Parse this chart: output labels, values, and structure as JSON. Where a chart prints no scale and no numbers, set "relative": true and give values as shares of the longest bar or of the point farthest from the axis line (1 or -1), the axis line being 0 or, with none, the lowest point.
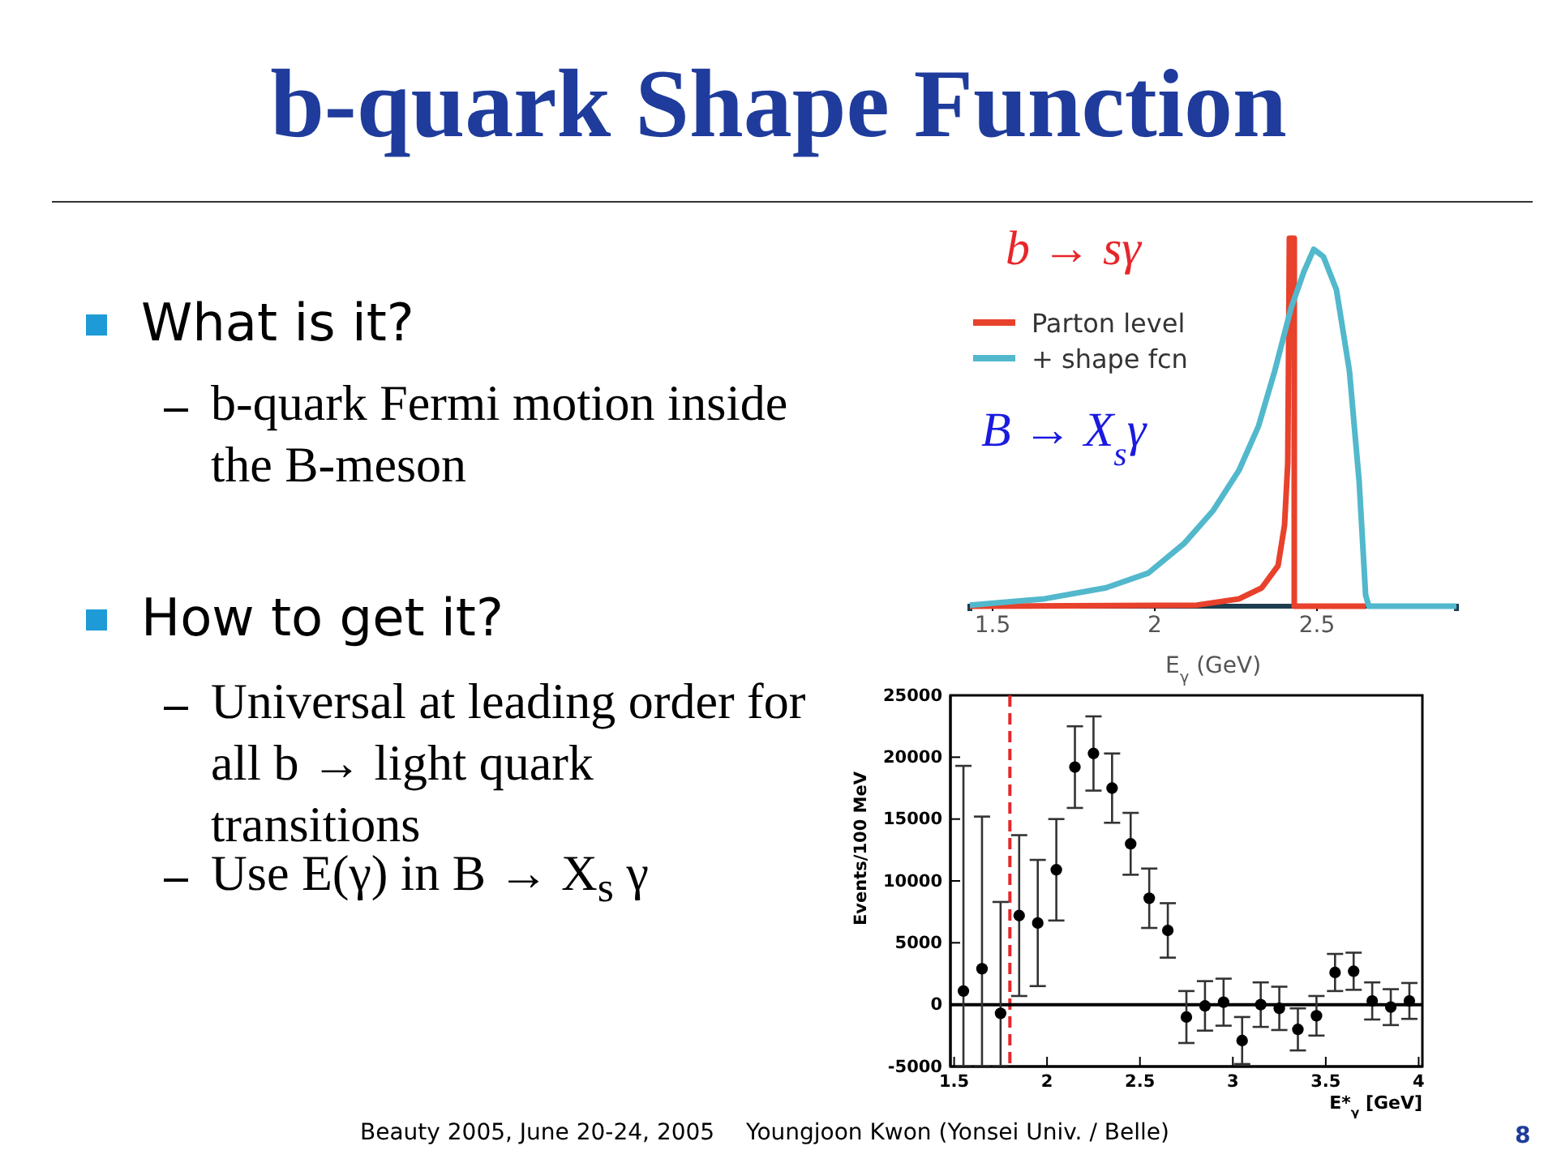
{
  "chart_data": [
    {
      "type": "other",
      "title": "b-quark Shape Function",
      "annotations": [
        "What is it?",
        "b-quark Fermi motion inside the B-meson",
        "How to get it?",
        "Universal at leading order for all b → light quark transitions",
        "Use E(γ) in B → X$_{s}$ γ",
        "Beauty 2005, June 20-24, 2005",
        "Youngjoon Kwon (Yonsei Univ. / Belle)",
        "8"
      ]
    },
    {
      "type": "line",
      "relative": true,
      "xlabel": "E$_{γ}$ (GeV)",
      "xlim": [
        1.43,
        2.93
      ],
      "xticks": [
        1.5,
        2,
        2.5
      ],
      "legend": "top left",
      "annotations": [
        "b → sγ",
        "B → X$_{s}$γ"
      ],
      "series": [
        {
          "name": "Parton level",
          "color": "#e8412c",
          "x": [
            1.43,
            2.13,
            2.26,
            2.33,
            2.38,
            2.4,
            2.41,
            2.415,
            2.43,
            2.43,
            2.65
          ],
          "values": [
            0,
            0.003,
            0.02,
            0.05,
            0.11,
            0.22,
            0.39,
            1,
            1,
            0,
            0
          ]
        },
        {
          "name": "+ shape fcn",
          "color": "#52b8cc",
          "x": [
            1.43,
            1.66,
            1.85,
            1.98,
            2.09,
            2.18,
            2.26,
            2.32,
            2.37,
            2.42,
            2.46,
            2.49,
            2.52,
            2.56,
            2.6,
            2.63,
            2.65,
            2.66,
            2.93
          ],
          "values": [
            0.003,
            0.02,
            0.05,
            0.09,
            0.17,
            0.26,
            0.37,
            0.49,
            0.64,
            0.81,
            0.91,
            0.97,
            0.95,
            0.86,
            0.64,
            0.34,
            0.03,
            0,
            0
          ]
        }
      ]
    },
    {
      "type": "scatter",
      "xlabel": "E*$_{γ}$ [GeV]",
      "ylabel": "Events/100 MeV",
      "xlim": [
        1.48,
        4.02
      ],
      "ylim": [
        -5000,
        25000
      ],
      "xticks": [
        1.5,
        2,
        2.5,
        3,
        3.5,
        4
      ],
      "yticks": [
        -5000,
        0,
        5000,
        10000,
        15000,
        20000,
        25000
      ],
      "marker": "circle",
      "color": "#000000",
      "x": [
        1.55,
        1.65,
        1.75,
        1.85,
        1.95,
        2.05,
        2.15,
        2.25,
        2.35,
        2.45,
        2.55,
        2.65,
        2.75,
        2.85,
        2.95,
        3.05,
        3.15,
        3.25,
        3.35,
        3.45,
        3.55,
        3.65,
        3.75,
        3.85,
        3.95
      ],
      "values": [
        1100,
        2900,
        -700,
        7200,
        6600,
        10900,
        19200,
        20300,
        17500,
        13000,
        8600,
        6000,
        -1000,
        -100,
        200,
        -2900,
        0,
        -300,
        -2000,
        -900,
        2600,
        2700,
        300,
        -200,
        300
      ],
      "errors": [
        [
          -5000,
          19300
        ],
        [
          -5000,
          15200
        ],
        [
          -5000,
          8300
        ],
        6500,
        5100,
        4100,
        3300,
        3000,
        2800,
        2500,
        2400,
        2200,
        2100,
        2000,
        1900,
        1900,
        1800,
        1750,
        1700,
        1600,
        1500,
        1500,
        1500,
        1450,
        1450
      ],
      "ref_lines": [
        {
          "axis": "x",
          "value": 1.8,
          "color": "#e8262a",
          "line_style": "dashed"
        },
        {
          "axis": "y",
          "value": 0,
          "color": "#000000"
        }
      ]
    }
  ]
}
